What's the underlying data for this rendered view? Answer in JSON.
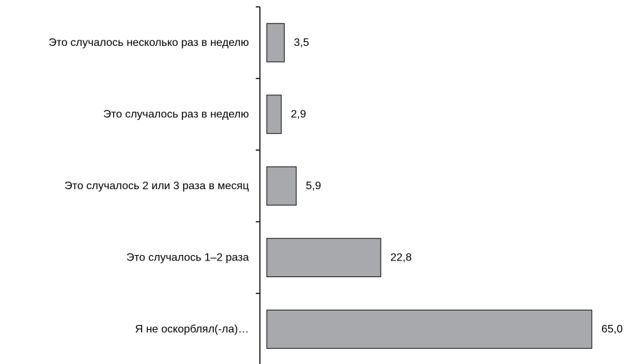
{
  "chart_data": {
    "type": "bar",
    "orientation": "horizontal",
    "categories": [
      "Это случалось несколько раз в неделю",
      "Это случалось раз в неделю",
      "Это случалось 2 или 3 раза в месяц",
      "Это случалось 1–2 раза",
      "Я не оскорблял(-ла)…"
    ],
    "values": [
      3.5,
      2.9,
      5.9,
      22.8,
      65.0
    ],
    "value_labels": [
      "3,5",
      "2,9",
      "5,9",
      "22,8",
      "65,0"
    ],
    "title": "",
    "xlabel": "",
    "ylabel": "",
    "xlim": [
      0,
      65.0
    ],
    "grid": false,
    "legend": "none",
    "colors": {
      "bar_fill": "#a7a9ac",
      "bar_stroke": "#000000",
      "axis": "#000000",
      "text": "#000000"
    }
  }
}
